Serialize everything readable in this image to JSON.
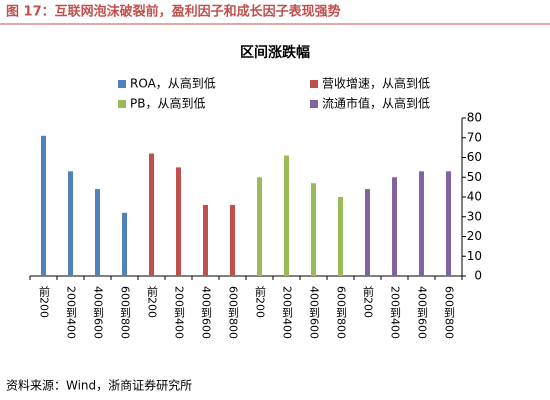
{
  "header": {
    "title": "图 17：互联网泡沫破裂前，盈利因子和成长因子表现强势"
  },
  "chart_data": {
    "type": "bar",
    "title": "区间涨跌幅",
    "categories": [
      "前200",
      "200到400",
      "400到600",
      "600到800",
      "前200",
      "200到400",
      "400到600",
      "600到800",
      "前200",
      "200到400",
      "400到600",
      "600到800",
      "前200",
      "200到400",
      "400到600",
      "600到800"
    ],
    "series": [
      {
        "name": "ROA，从高到低",
        "color": "#4f81bd",
        "values": [
          71,
          53,
          44,
          32,
          null,
          null,
          null,
          null,
          null,
          null,
          null,
          null,
          null,
          null,
          null,
          null
        ]
      },
      {
        "name": "营收增速，从高到低",
        "color": "#c0504d",
        "values": [
          null,
          null,
          null,
          null,
          62,
          55,
          36,
          36,
          null,
          null,
          null,
          null,
          null,
          null,
          null,
          null
        ]
      },
      {
        "name": "PB，从高到低",
        "color": "#9bbb59",
        "values": [
          null,
          null,
          null,
          null,
          null,
          null,
          null,
          null,
          50,
          61,
          47,
          40,
          null,
          null,
          null,
          null
        ]
      },
      {
        "name": "流通市值，从高到低",
        "color": "#8064a2",
        "values": [
          null,
          null,
          null,
          null,
          null,
          null,
          null,
          null,
          null,
          null,
          null,
          null,
          44,
          50,
          53,
          53
        ]
      }
    ],
    "ylim": [
      0,
      80
    ],
    "yticks": [
      0,
      10,
      20,
      30,
      40,
      50,
      60,
      70,
      80
    ],
    "axis_side": "right"
  },
  "footer": {
    "source": "资料来源：Wind，浙商证券研究所"
  }
}
